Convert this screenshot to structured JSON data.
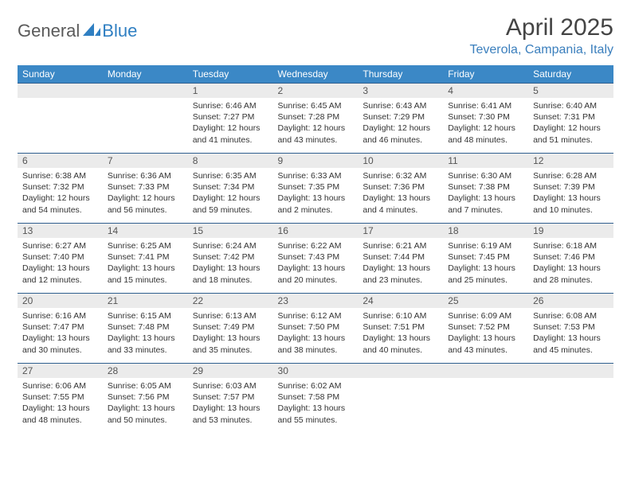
{
  "brand": {
    "part1": "General",
    "part2": "Blue"
  },
  "title": "April 2025",
  "location": "Teverola, Campania, Italy",
  "colors": {
    "header_bg": "#3b88c6",
    "header_text": "#ffffff",
    "daynum_bg": "#ebebeb",
    "row_border": "#2f5f8f",
    "location_color": "#3b7fbd",
    "logo_blue": "#2f7fc2",
    "logo_gray": "#5a5a5a"
  },
  "daysOfWeek": [
    "Sunday",
    "Monday",
    "Tuesday",
    "Wednesday",
    "Thursday",
    "Friday",
    "Saturday"
  ],
  "weeks": [
    [
      {
        "empty": true
      },
      {
        "empty": true
      },
      {
        "num": "1",
        "sunrise": "6:46 AM",
        "sunset": "7:27 PM",
        "daylight": "12 hours and 41 minutes."
      },
      {
        "num": "2",
        "sunrise": "6:45 AM",
        "sunset": "7:28 PM",
        "daylight": "12 hours and 43 minutes."
      },
      {
        "num": "3",
        "sunrise": "6:43 AM",
        "sunset": "7:29 PM",
        "daylight": "12 hours and 46 minutes."
      },
      {
        "num": "4",
        "sunrise": "6:41 AM",
        "sunset": "7:30 PM",
        "daylight": "12 hours and 48 minutes."
      },
      {
        "num": "5",
        "sunrise": "6:40 AM",
        "sunset": "7:31 PM",
        "daylight": "12 hours and 51 minutes."
      }
    ],
    [
      {
        "num": "6",
        "sunrise": "6:38 AM",
        "sunset": "7:32 PM",
        "daylight": "12 hours and 54 minutes."
      },
      {
        "num": "7",
        "sunrise": "6:36 AM",
        "sunset": "7:33 PM",
        "daylight": "12 hours and 56 minutes."
      },
      {
        "num": "8",
        "sunrise": "6:35 AM",
        "sunset": "7:34 PM",
        "daylight": "12 hours and 59 minutes."
      },
      {
        "num": "9",
        "sunrise": "6:33 AM",
        "sunset": "7:35 PM",
        "daylight": "13 hours and 2 minutes."
      },
      {
        "num": "10",
        "sunrise": "6:32 AM",
        "sunset": "7:36 PM",
        "daylight": "13 hours and 4 minutes."
      },
      {
        "num": "11",
        "sunrise": "6:30 AM",
        "sunset": "7:38 PM",
        "daylight": "13 hours and 7 minutes."
      },
      {
        "num": "12",
        "sunrise": "6:28 AM",
        "sunset": "7:39 PM",
        "daylight": "13 hours and 10 minutes."
      }
    ],
    [
      {
        "num": "13",
        "sunrise": "6:27 AM",
        "sunset": "7:40 PM",
        "daylight": "13 hours and 12 minutes."
      },
      {
        "num": "14",
        "sunrise": "6:25 AM",
        "sunset": "7:41 PM",
        "daylight": "13 hours and 15 minutes."
      },
      {
        "num": "15",
        "sunrise": "6:24 AM",
        "sunset": "7:42 PM",
        "daylight": "13 hours and 18 minutes."
      },
      {
        "num": "16",
        "sunrise": "6:22 AM",
        "sunset": "7:43 PM",
        "daylight": "13 hours and 20 minutes."
      },
      {
        "num": "17",
        "sunrise": "6:21 AM",
        "sunset": "7:44 PM",
        "daylight": "13 hours and 23 minutes."
      },
      {
        "num": "18",
        "sunrise": "6:19 AM",
        "sunset": "7:45 PM",
        "daylight": "13 hours and 25 minutes."
      },
      {
        "num": "19",
        "sunrise": "6:18 AM",
        "sunset": "7:46 PM",
        "daylight": "13 hours and 28 minutes."
      }
    ],
    [
      {
        "num": "20",
        "sunrise": "6:16 AM",
        "sunset": "7:47 PM",
        "daylight": "13 hours and 30 minutes."
      },
      {
        "num": "21",
        "sunrise": "6:15 AM",
        "sunset": "7:48 PM",
        "daylight": "13 hours and 33 minutes."
      },
      {
        "num": "22",
        "sunrise": "6:13 AM",
        "sunset": "7:49 PM",
        "daylight": "13 hours and 35 minutes."
      },
      {
        "num": "23",
        "sunrise": "6:12 AM",
        "sunset": "7:50 PM",
        "daylight": "13 hours and 38 minutes."
      },
      {
        "num": "24",
        "sunrise": "6:10 AM",
        "sunset": "7:51 PM",
        "daylight": "13 hours and 40 minutes."
      },
      {
        "num": "25",
        "sunrise": "6:09 AM",
        "sunset": "7:52 PM",
        "daylight": "13 hours and 43 minutes."
      },
      {
        "num": "26",
        "sunrise": "6:08 AM",
        "sunset": "7:53 PM",
        "daylight": "13 hours and 45 minutes."
      }
    ],
    [
      {
        "num": "27",
        "sunrise": "6:06 AM",
        "sunset": "7:55 PM",
        "daylight": "13 hours and 48 minutes."
      },
      {
        "num": "28",
        "sunrise": "6:05 AM",
        "sunset": "7:56 PM",
        "daylight": "13 hours and 50 minutes."
      },
      {
        "num": "29",
        "sunrise": "6:03 AM",
        "sunset": "7:57 PM",
        "daylight": "13 hours and 53 minutes."
      },
      {
        "num": "30",
        "sunrise": "6:02 AM",
        "sunset": "7:58 PM",
        "daylight": "13 hours and 55 minutes."
      },
      {
        "empty": true
      },
      {
        "empty": true
      },
      {
        "empty": true
      }
    ]
  ]
}
